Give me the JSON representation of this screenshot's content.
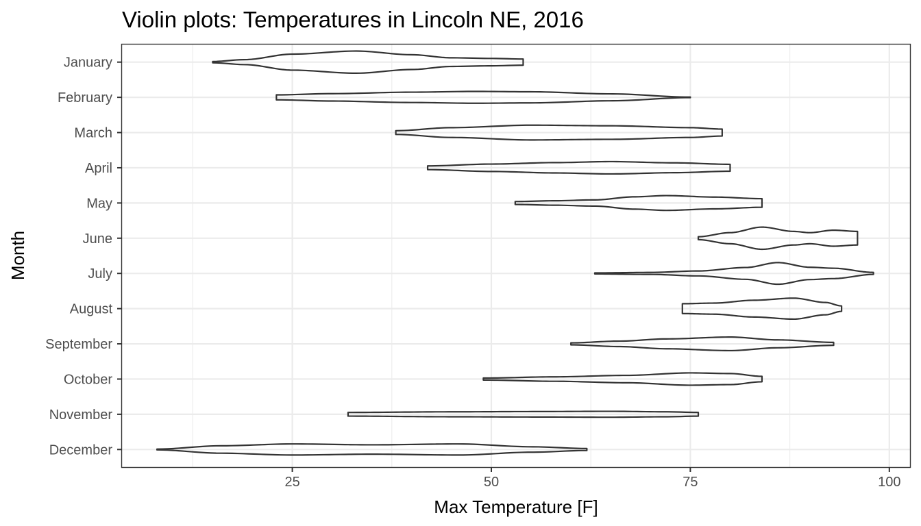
{
  "chart_data": {
    "type": "violin",
    "title": "Violin plots: Temperatures in Lincoln NE, 2016",
    "xlabel": "Max Temperature [F]",
    "ylabel": "Month",
    "xlim": [
      3.6,
      102.6
    ],
    "x_ticks": [
      25,
      50,
      75,
      100
    ],
    "x_tick_labels": [
      "25",
      "50",
      "75",
      "100"
    ],
    "grid": true,
    "legend": "none",
    "categories": [
      "January",
      "February",
      "March",
      "April",
      "May",
      "June",
      "July",
      "August",
      "September",
      "October",
      "November",
      "December"
    ],
    "series": [
      {
        "month": "January",
        "min": 15,
        "max": 54,
        "density": [
          [
            15,
            0.05
          ],
          [
            19,
            0.2
          ],
          [
            25,
            0.65
          ],
          [
            33,
            0.9
          ],
          [
            40,
            0.6
          ],
          [
            45,
            0.35
          ],
          [
            50,
            0.3
          ],
          [
            54,
            0.25
          ]
        ]
      },
      {
        "month": "February",
        "min": 23,
        "max": 75,
        "density": [
          [
            23,
            0.2
          ],
          [
            30,
            0.3
          ],
          [
            40,
            0.42
          ],
          [
            48,
            0.48
          ],
          [
            55,
            0.45
          ],
          [
            65,
            0.28
          ],
          [
            75,
            0.02
          ]
        ]
      },
      {
        "month": "March",
        "min": 38,
        "max": 79,
        "density": [
          [
            38,
            0.15
          ],
          [
            45,
            0.4
          ],
          [
            55,
            0.6
          ],
          [
            65,
            0.55
          ],
          [
            75,
            0.4
          ],
          [
            79,
            0.28
          ]
        ]
      },
      {
        "month": "April",
        "min": 42,
        "max": 80,
        "density": [
          [
            42,
            0.15
          ],
          [
            50,
            0.3
          ],
          [
            58,
            0.42
          ],
          [
            65,
            0.5
          ],
          [
            73,
            0.4
          ],
          [
            80,
            0.28
          ]
        ]
      },
      {
        "month": "May",
        "min": 53,
        "max": 84,
        "density": [
          [
            53,
            0.12
          ],
          [
            58,
            0.18
          ],
          [
            63,
            0.25
          ],
          [
            68,
            0.5
          ],
          [
            72,
            0.6
          ],
          [
            78,
            0.48
          ],
          [
            84,
            0.35
          ]
        ]
      },
      {
        "month": "June",
        "min": 76,
        "max": 96,
        "density": [
          [
            76,
            0.12
          ],
          [
            80,
            0.45
          ],
          [
            84,
            0.9
          ],
          [
            88,
            0.55
          ],
          [
            90,
            0.45
          ],
          [
            93,
            0.65
          ],
          [
            96,
            0.55
          ]
        ]
      },
      {
        "month": "July",
        "min": 63,
        "max": 98,
        "density": [
          [
            63,
            0.04
          ],
          [
            70,
            0.08
          ],
          [
            76,
            0.2
          ],
          [
            82,
            0.48
          ],
          [
            86,
            0.88
          ],
          [
            90,
            0.5
          ],
          [
            93,
            0.42
          ],
          [
            98,
            0.08
          ]
        ]
      },
      {
        "month": "August",
        "min": 74,
        "max": 94,
        "density": [
          [
            74,
            0.4
          ],
          [
            78,
            0.45
          ],
          [
            83,
            0.68
          ],
          [
            88,
            0.85
          ],
          [
            92,
            0.5
          ],
          [
            94,
            0.22
          ]
        ]
      },
      {
        "month": "September",
        "min": 60,
        "max": 93,
        "density": [
          [
            60,
            0.08
          ],
          [
            66,
            0.22
          ],
          [
            72,
            0.4
          ],
          [
            80,
            0.55
          ],
          [
            86,
            0.32
          ],
          [
            93,
            0.12
          ]
        ]
      },
      {
        "month": "October",
        "min": 49,
        "max": 84,
        "density": [
          [
            49,
            0.08
          ],
          [
            58,
            0.18
          ],
          [
            67,
            0.3
          ],
          [
            75,
            0.5
          ],
          [
            80,
            0.45
          ],
          [
            84,
            0.22
          ]
        ]
      },
      {
        "month": "November",
        "min": 32,
        "max": 76,
        "density": [
          [
            32,
            0.15
          ],
          [
            45,
            0.2
          ],
          [
            55,
            0.22
          ],
          [
            65,
            0.24
          ],
          [
            72,
            0.2
          ],
          [
            76,
            0.15
          ]
        ]
      },
      {
        "month": "December",
        "min": 8,
        "max": 62,
        "density": [
          [
            8,
            0.03
          ],
          [
            16,
            0.3
          ],
          [
            25,
            0.45
          ],
          [
            35,
            0.38
          ],
          [
            46,
            0.45
          ],
          [
            55,
            0.22
          ],
          [
            62,
            0.08
          ]
        ]
      }
    ],
    "colors": {
      "outline": "#333333",
      "grid": "#ebebeb",
      "tick_text": "#4d4d4d",
      "text": "#000000",
      "background": "#ffffff"
    }
  }
}
